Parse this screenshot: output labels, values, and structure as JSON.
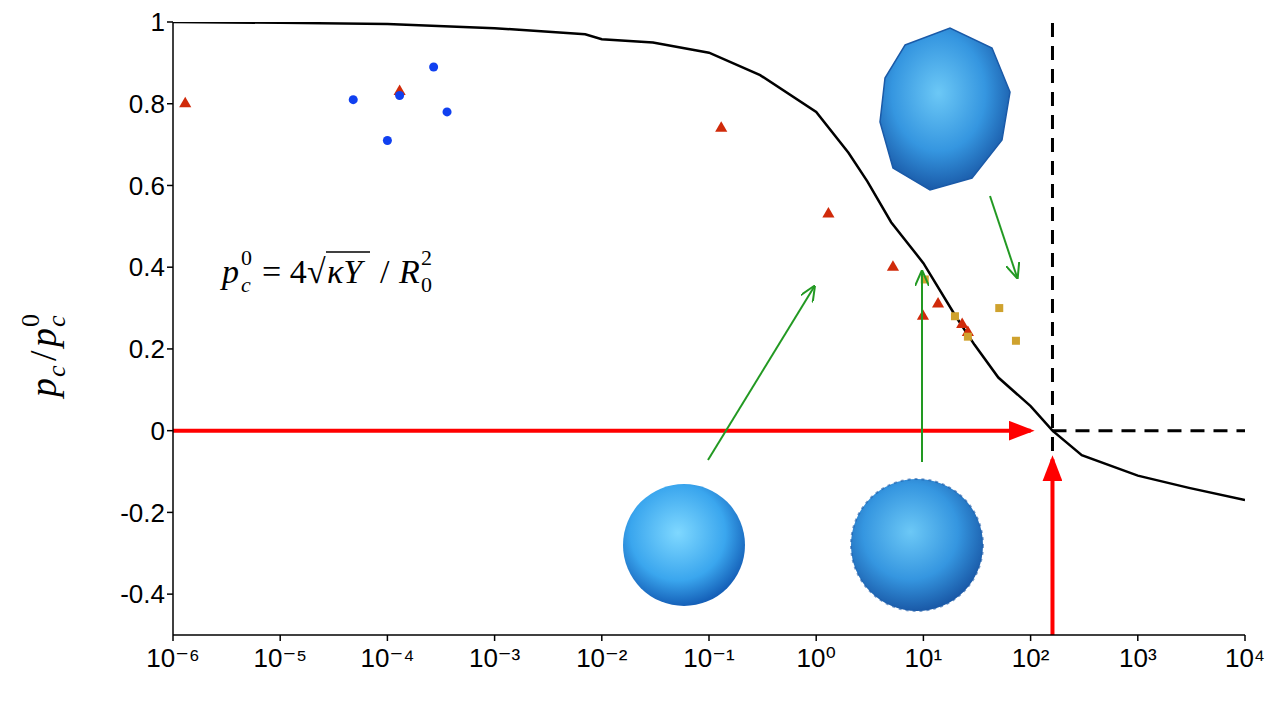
{
  "chart_data": {
    "type": "scatter",
    "y_label": {
      "numerator": "p",
      "numerator_subscript": "c",
      "slash": "/",
      "denominator": "p",
      "denominator_subscript": "c",
      "denominator_superscript": "0"
    },
    "formula": {
      "symbol": "p",
      "subscript": "c",
      "superscript": "0",
      "equals": "= 4",
      "root": "√",
      "radicand": "κY",
      "slash": "/",
      "denominator": "R",
      "denominator_subscript": "0",
      "denominator_superscript": "2"
    },
    "log": "x",
    "grid": false,
    "xlim": [
      1e-06,
      10000
    ],
    "xticks": [
      {
        "value": 1e-06,
        "label": "10⁻⁶"
      },
      {
        "value": 1e-05,
        "label": "10⁻⁵"
      },
      {
        "value": 0.0001,
        "label": "10⁻⁴"
      },
      {
        "value": 0.001,
        "label": "10⁻³"
      },
      {
        "value": 0.01,
        "label": "10⁻²"
      },
      {
        "value": 0.1,
        "label": "10⁻¹"
      },
      {
        "value": 1,
        "label": "10⁰"
      },
      {
        "value": 10,
        "label": "10¹"
      },
      {
        "value": 100,
        "label": "10²"
      },
      {
        "value": 1000,
        "label": "10³"
      },
      {
        "value": 10000,
        "label": "10⁴"
      }
    ],
    "ylim": [
      -0.5,
      1
    ],
    "yticks": [
      -0.4,
      -0.2,
      0,
      0.2,
      0.4,
      0.6,
      0.8,
      1
    ],
    "series": [
      {
        "type": "line",
        "color": "#000000",
        "marker": "none",
        "line_style": "solid",
        "x": [
          1e-06,
          1e-05,
          0.0001,
          0.001,
          0.007,
          0.01,
          0.03,
          0.1,
          0.3,
          1,
          2,
          3,
          5,
          10,
          20,
          30,
          50,
          100,
          160,
          300,
          1000,
          3000,
          10000
        ],
        "values": [
          1.0,
          0.998,
          0.995,
          0.985,
          0.97,
          0.958,
          0.95,
          0.925,
          0.87,
          0.78,
          0.68,
          0.61,
          0.51,
          0.41,
          0.28,
          0.21,
          0.13,
          0.06,
          0,
          -0.06,
          -0.11,
          -0.14,
          -0.17
        ]
      },
      {
        "type": "scatter",
        "color": "#d02a0a",
        "marker": "triangle",
        "x": [
          1.3e-06,
          0.00013,
          0.13,
          1.3,
          5.2,
          9.9,
          13.7,
          23,
          26
        ],
        "values": [
          0.8,
          0.83,
          0.74,
          0.53,
          0.4,
          0.28,
          0.31,
          0.26,
          0.24
        ]
      },
      {
        "type": "scatter",
        "color": "#1040f0",
        "marker": "circle",
        "x": [
          4.8e-05,
          0.0001,
          0.00013,
          0.00027,
          0.00036
        ],
        "values": [
          0.81,
          0.71,
          0.82,
          0.89,
          0.78
        ]
      },
      {
        "type": "scatter",
        "color": "#cfa22e",
        "marker": "square",
        "x": [
          10.3,
          19.7,
          26,
          51,
          73
        ],
        "values": [
          0.37,
          0.28,
          0.23,
          0.3,
          0.22
        ]
      }
    ],
    "reference_lines": [
      {
        "x": 160,
        "line_style": "dashed",
        "color": "#000000"
      },
      {
        "y": 0,
        "x_from": 160,
        "line_style": "dashed",
        "color": "#000000"
      }
    ],
    "arrows": [
      {
        "from": [
          1e-06,
          0
        ],
        "to": [
          100,
          0
        ],
        "color": "#ff0000"
      },
      {
        "from": [
          160,
          -0.5
        ],
        "to": [
          160,
          -0.07
        ],
        "color": "#ff0000"
      }
    ]
  }
}
